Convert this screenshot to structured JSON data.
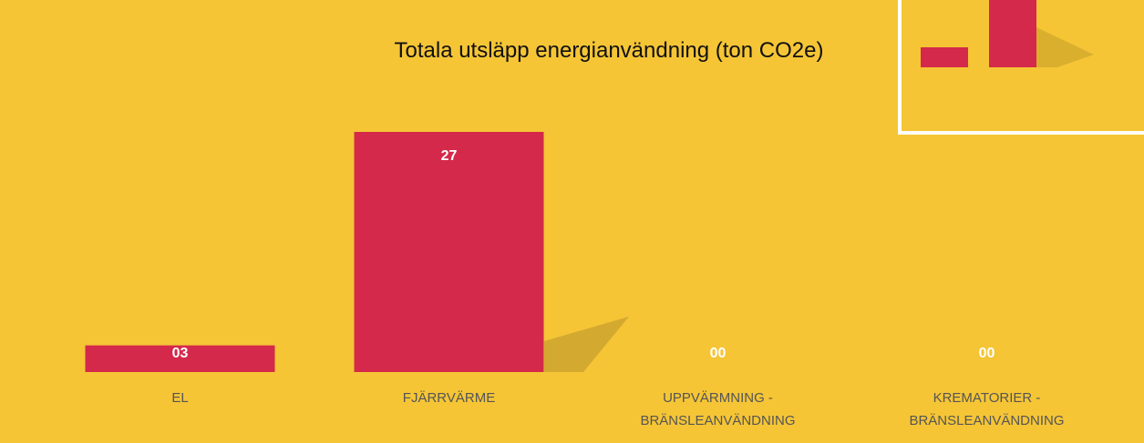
{
  "chart_data": {
    "type": "bar",
    "title": "Totala utsläpp energianvändning (ton CO2e)",
    "categories": [
      "EL",
      "FJÄRRVÄRME",
      "UPPVÄRMNING -\nBRÄNSLEANVÄNDNING",
      "KREMATORIER -\nBRÄNSLEANVÄNDNING"
    ],
    "values": [
      3,
      27,
      0,
      0
    ],
    "value_labels": [
      "03",
      "27",
      "00",
      "00"
    ],
    "color": "#d4294a"
  }
}
